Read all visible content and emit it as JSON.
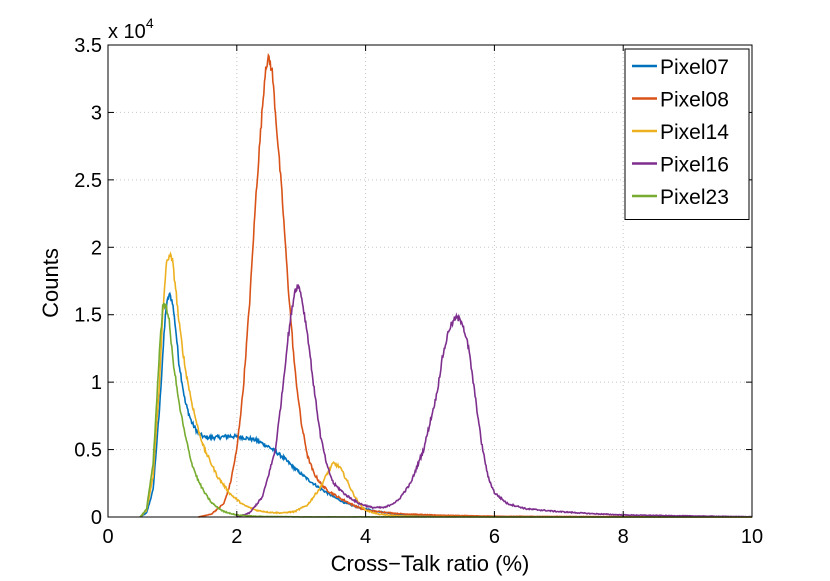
{
  "chart_data": {
    "type": "line",
    "xlabel": "Cross−Talk ratio (%)",
    "ylabel": "Counts",
    "xlim": [
      0,
      10
    ],
    "ylim": [
      0,
      35000
    ],
    "y_multiplier_label": "x 10",
    "y_multiplier_exponent": "4",
    "x_ticks": [
      0,
      2,
      4,
      6,
      8,
      10
    ],
    "y_ticks": [
      0,
      5000,
      10000,
      15000,
      20000,
      25000,
      30000,
      35000
    ],
    "x_tick_labels": [
      "0",
      "2",
      "4",
      "6",
      "8",
      "10"
    ],
    "y_tick_labels": [
      "0",
      "0.5",
      "1",
      "1.5",
      "2",
      "2.5",
      "3",
      "3.5"
    ],
    "grid": true,
    "legend_position": "top-right",
    "series": [
      {
        "name": "Pixel07",
        "color": "#0072BD",
        "x": [
          0.5,
          0.6,
          0.7,
          0.8,
          0.85,
          0.9,
          0.95,
          1.0,
          1.05,
          1.1,
          1.2,
          1.3,
          1.4,
          1.5,
          1.7,
          1.9,
          2.1,
          2.3,
          2.5,
          2.7,
          2.9,
          3.1,
          3.3,
          3.5,
          3.7,
          3.9,
          4.2,
          4.5,
          5.0,
          5.5,
          6.0,
          7.0,
          8.0,
          10.0
        ],
        "y": [
          0,
          300,
          2000,
          8000,
          12000,
          15500,
          16500,
          16000,
          14000,
          11500,
          8500,
          7000,
          6200,
          5900,
          5900,
          6000,
          5900,
          5700,
          5200,
          4500,
          3600,
          2800,
          2100,
          1500,
          1000,
          700,
          400,
          200,
          80,
          40,
          20,
          10,
          5,
          0
        ]
      },
      {
        "name": "Pixel08",
        "color": "#D95319",
        "x": [
          1.4,
          1.6,
          1.8,
          1.9,
          2.0,
          2.1,
          2.2,
          2.3,
          2.4,
          2.45,
          2.5,
          2.55,
          2.6,
          2.7,
          2.8,
          2.9,
          3.0,
          3.1,
          3.2,
          3.3,
          3.4,
          3.6,
          3.8,
          4.0,
          4.5,
          5.0,
          5.5,
          6.0,
          10.0
        ],
        "y": [
          0,
          200,
          1000,
          2500,
          5000,
          9500,
          16000,
          24000,
          30500,
          33500,
          34000,
          33000,
          30000,
          24000,
          17000,
          11000,
          7000,
          4500,
          3200,
          2500,
          2000,
          1400,
          900,
          500,
          250,
          150,
          100,
          50,
          0
        ]
      },
      {
        "name": "Pixel14",
        "color": "#EDB120",
        "x": [
          0.5,
          0.6,
          0.7,
          0.8,
          0.85,
          0.9,
          0.95,
          1.0,
          1.05,
          1.1,
          1.2,
          1.3,
          1.4,
          1.5,
          1.7,
          1.9,
          2.1,
          2.3,
          2.5,
          2.7,
          2.9,
          3.1,
          3.3,
          3.4,
          3.5,
          3.6,
          3.7,
          3.8,
          3.9,
          4.0,
          4.2,
          4.5,
          5.0,
          6.0,
          10.0
        ],
        "y": [
          0,
          500,
          3000,
          10000,
          15000,
          18500,
          19500,
          19000,
          17000,
          14500,
          11000,
          8500,
          6500,
          5000,
          3000,
          1700,
          900,
          500,
          350,
          300,
          400,
          900,
          2200,
          3200,
          4000,
          3700,
          2800,
          1800,
          1000,
          500,
          200,
          80,
          30,
          10,
          0
        ]
      },
      {
        "name": "Pixel16",
        "color": "#7E2F8E",
        "x": [
          2.0,
          2.2,
          2.4,
          2.6,
          2.7,
          2.8,
          2.9,
          2.95,
          3.0,
          3.1,
          3.2,
          3.3,
          3.4,
          3.5,
          3.7,
          3.9,
          4.1,
          4.3,
          4.5,
          4.7,
          4.9,
          5.1,
          5.2,
          5.3,
          5.4,
          5.5,
          5.6,
          5.7,
          5.8,
          5.9,
          6.0,
          6.2,
          6.5,
          7.0,
          7.5,
          8.0,
          9.0,
          10.0
        ],
        "y": [
          0,
          300,
          1500,
          5000,
          9000,
          13500,
          16800,
          17200,
          16500,
          13500,
          9500,
          6000,
          3800,
          2500,
          1600,
          1000,
          700,
          700,
          1200,
          2500,
          5000,
          9000,
          12000,
          14000,
          14800,
          14500,
          12500,
          9000,
          5500,
          3000,
          1800,
          1000,
          600,
          400,
          250,
          150,
          80,
          20
        ]
      },
      {
        "name": "Pixel23",
        "color": "#77AC30",
        "x": [
          0.5,
          0.6,
          0.7,
          0.75,
          0.8,
          0.85,
          0.9,
          0.95,
          1.0,
          1.1,
          1.2,
          1.3,
          1.4,
          1.5,
          1.6,
          1.7,
          1.8,
          2.0,
          2.3,
          3.0,
          10.0
        ],
        "y": [
          0,
          600,
          4000,
          8000,
          12500,
          15500,
          15800,
          14500,
          12000,
          8500,
          6000,
          4000,
          2700,
          1800,
          1100,
          700,
          400,
          150,
          50,
          10,
          0
        ]
      }
    ]
  }
}
